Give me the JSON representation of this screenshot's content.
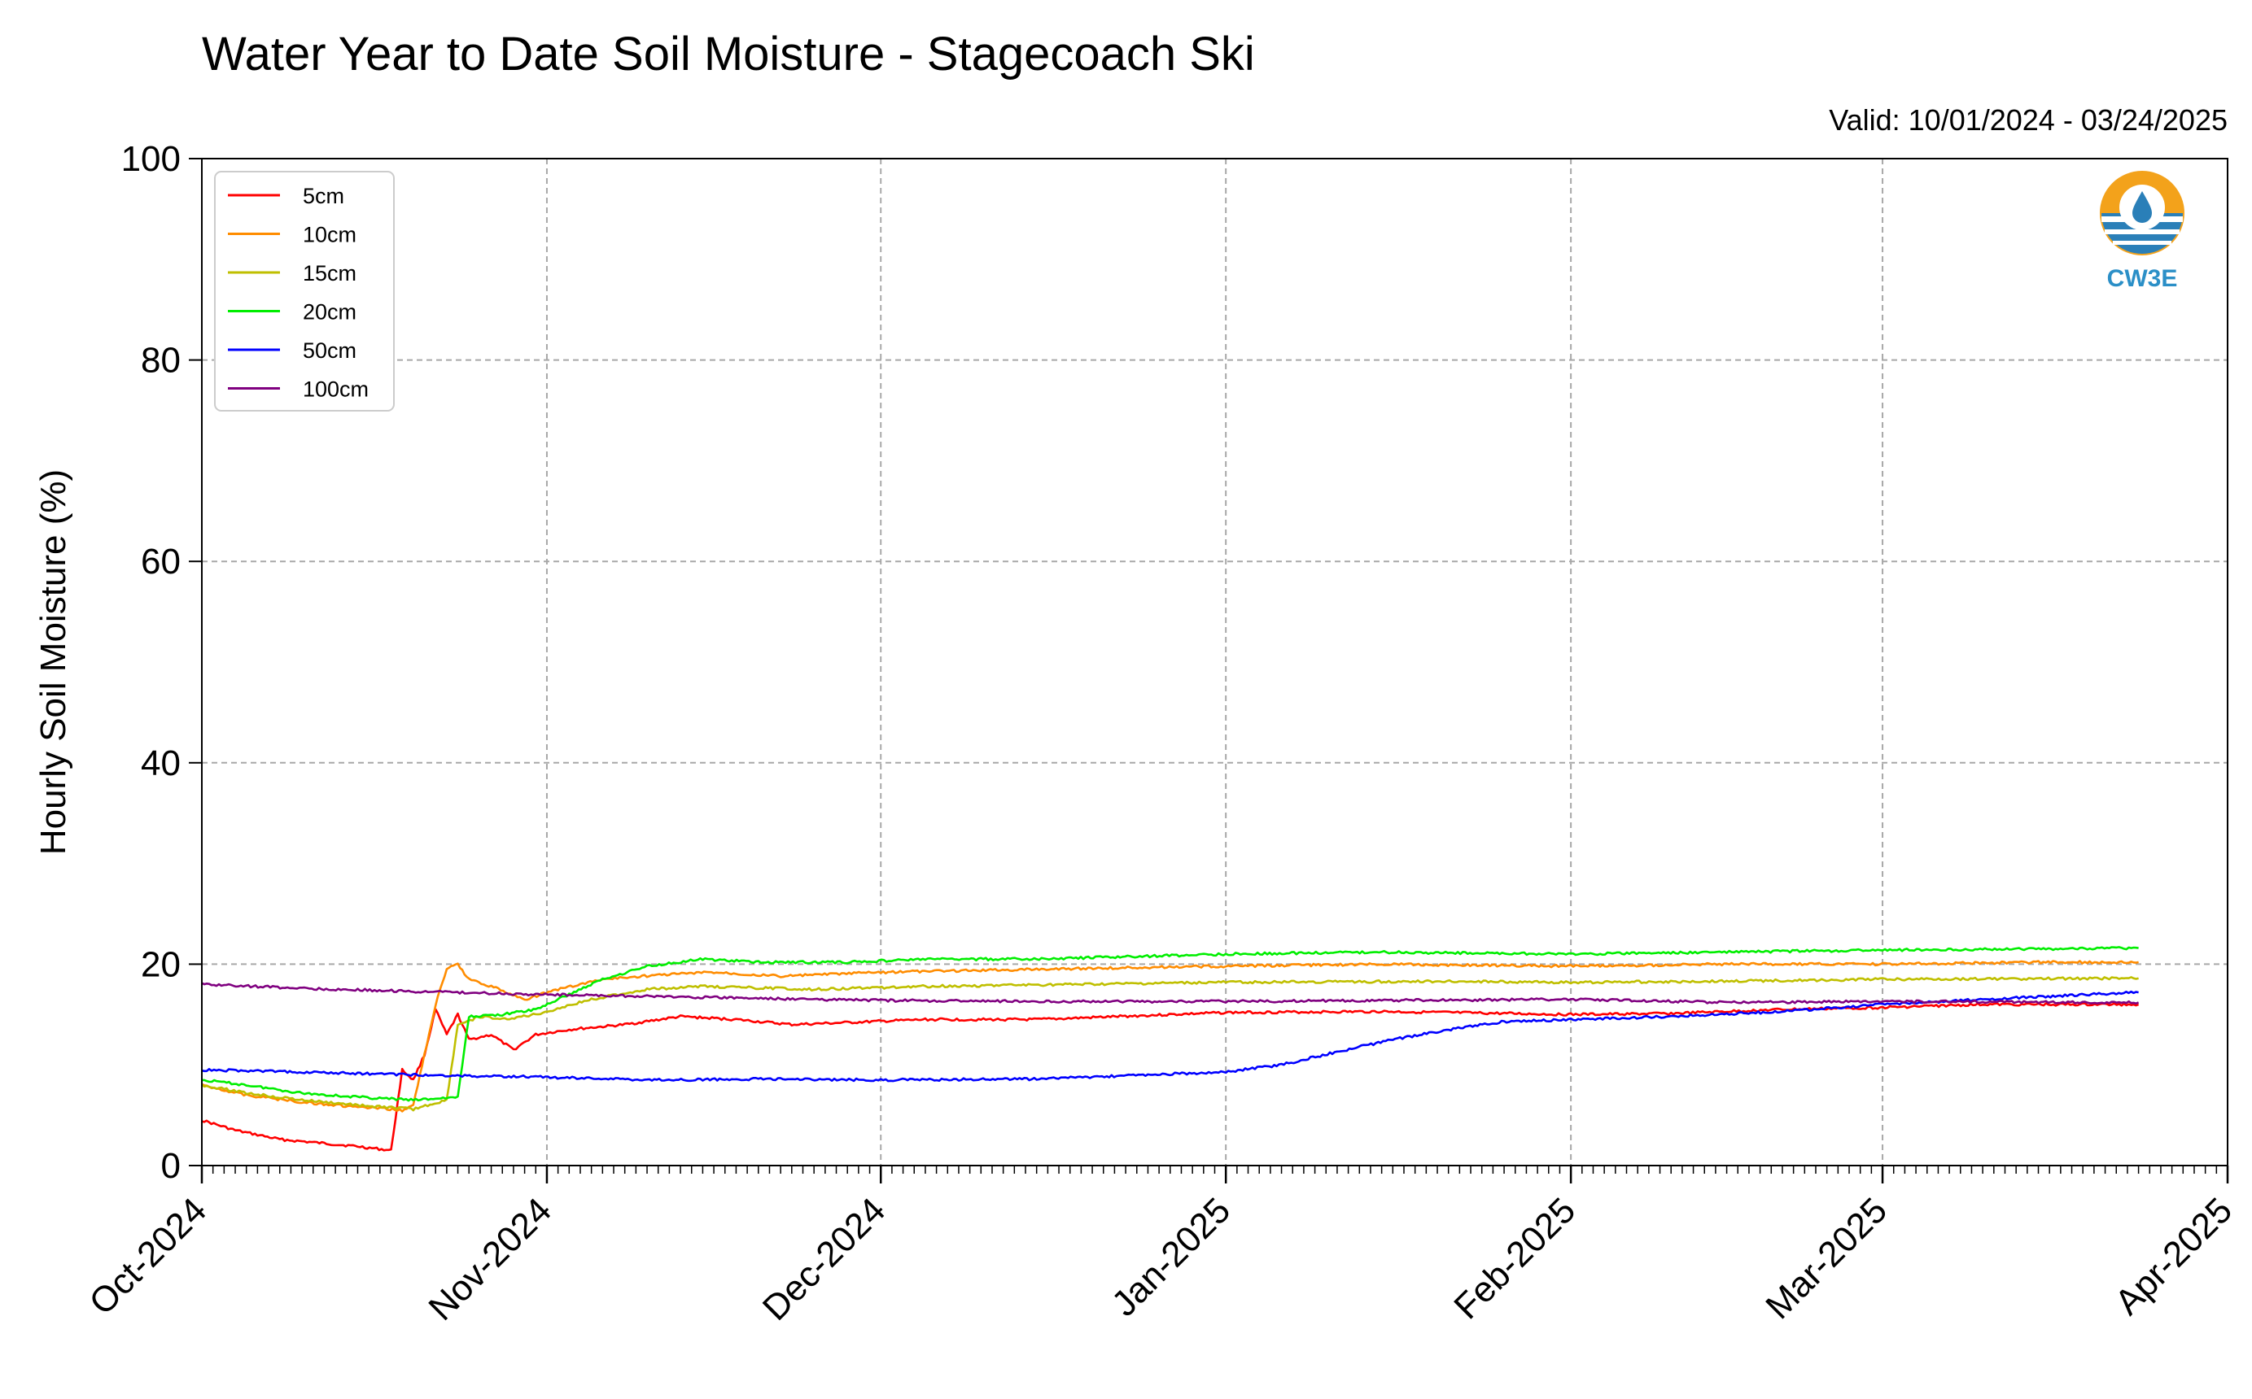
{
  "chart_data": {
    "type": "line",
    "title": "Water Year to Date Soil Moisture - Stagecoach Ski",
    "subtitle": "Valid: 10/01/2024 - 03/24/2025",
    "xlabel": "",
    "ylabel": "Hourly Soil Moisture (%)",
    "ylim": [
      0,
      100
    ],
    "yticks": [
      "0",
      "20",
      "40",
      "60",
      "80",
      "100"
    ],
    "xlim": [
      "2024-10-01",
      "2025-04-01"
    ],
    "xticks": [
      {
        "date": "2024-10-01",
        "label": "Oct-2024"
      },
      {
        "date": "2024-11-01",
        "label": "Nov-2024"
      },
      {
        "date": "2024-12-01",
        "label": "Dec-2024"
      },
      {
        "date": "2025-01-01",
        "label": "Jan-2025"
      },
      {
        "date": "2025-02-01",
        "label": "Feb-2025"
      },
      {
        "date": "2025-03-01",
        "label": "Mar-2025"
      },
      {
        "date": "2025-04-01",
        "label": "Apr-2025"
      }
    ],
    "grid": true,
    "legend_position": "top-left",
    "logo_text": "CW3E",
    "series": [
      {
        "name": "5cm",
        "color": "#ff0000",
        "points": [
          [
            "2024-10-01",
            4.5
          ],
          [
            "2024-10-04",
            3.5
          ],
          [
            "2024-10-08",
            2.6
          ],
          [
            "2024-10-12",
            2.2
          ],
          [
            "2024-10-15",
            1.9
          ],
          [
            "2024-10-18",
            1.5
          ],
          [
            "2024-10-19",
            9.5
          ],
          [
            "2024-10-20",
            8.5
          ],
          [
            "2024-10-21",
            11.0
          ],
          [
            "2024-10-22",
            15.5
          ],
          [
            "2024-10-23",
            13.0
          ],
          [
            "2024-10-24",
            15.0
          ],
          [
            "2024-10-25",
            12.5
          ],
          [
            "2024-10-27",
            13.0
          ],
          [
            "2024-10-29",
            11.5
          ],
          [
            "2024-10-31",
            13.0
          ],
          [
            "2024-11-03",
            13.5
          ],
          [
            "2024-11-08",
            14.0
          ],
          [
            "2024-11-13",
            14.8
          ],
          [
            "2024-11-18",
            14.5
          ],
          [
            "2024-11-23",
            14.0
          ],
          [
            "2024-11-28",
            14.2
          ],
          [
            "2024-12-05",
            14.5
          ],
          [
            "2024-12-15",
            14.5
          ],
          [
            "2025-01-01",
            15.2
          ],
          [
            "2025-01-15",
            15.3
          ],
          [
            "2025-02-01",
            15.0
          ],
          [
            "2025-02-10",
            15.1
          ],
          [
            "2025-02-20",
            15.5
          ],
          [
            "2025-03-01",
            15.7
          ],
          [
            "2025-03-10",
            16.0
          ],
          [
            "2025-03-24",
            16.0
          ]
        ]
      },
      {
        "name": "10cm",
        "color": "#ff8c00",
        "points": [
          [
            "2024-10-01",
            8.0
          ],
          [
            "2024-10-05",
            7.0
          ],
          [
            "2024-10-10",
            6.3
          ],
          [
            "2024-10-15",
            5.8
          ],
          [
            "2024-10-19",
            5.5
          ],
          [
            "2024-10-20",
            6.0
          ],
          [
            "2024-10-21",
            11.0
          ],
          [
            "2024-10-22",
            16.0
          ],
          [
            "2024-10-23",
            19.5
          ],
          [
            "2024-10-24",
            20.0
          ],
          [
            "2024-10-25",
            18.5
          ],
          [
            "2024-10-27",
            17.8
          ],
          [
            "2024-10-30",
            16.5
          ],
          [
            "2024-11-02",
            17.5
          ],
          [
            "2024-11-06",
            18.5
          ],
          [
            "2024-11-12",
            19.0
          ],
          [
            "2024-11-16",
            19.2
          ],
          [
            "2024-11-22",
            18.8
          ],
          [
            "2024-12-01",
            19.2
          ],
          [
            "2024-12-15",
            19.5
          ],
          [
            "2025-01-01",
            19.8
          ],
          [
            "2025-01-15",
            20.0
          ],
          [
            "2025-02-01",
            19.8
          ],
          [
            "2025-02-15",
            20.0
          ],
          [
            "2025-03-01",
            20.0
          ],
          [
            "2025-03-15",
            20.2
          ],
          [
            "2025-03-24",
            20.2
          ]
        ]
      },
      {
        "name": "15cm",
        "color": "#bfbf00",
        "points": [
          [
            "2024-10-01",
            8.0
          ],
          [
            "2024-10-05",
            7.2
          ],
          [
            "2024-10-10",
            6.5
          ],
          [
            "2024-10-15",
            6.0
          ],
          [
            "2024-10-20",
            5.6
          ],
          [
            "2024-10-23",
            6.5
          ],
          [
            "2024-10-24",
            14.0
          ],
          [
            "2024-10-26",
            14.8
          ],
          [
            "2024-10-28",
            14.5
          ],
          [
            "2024-10-31",
            15.0
          ],
          [
            "2024-11-05",
            16.5
          ],
          [
            "2024-11-10",
            17.5
          ],
          [
            "2024-11-15",
            17.8
          ],
          [
            "2024-11-25",
            17.5
          ],
          [
            "2024-12-05",
            17.8
          ],
          [
            "2024-12-20",
            18.0
          ],
          [
            "2025-01-01",
            18.2
          ],
          [
            "2025-01-20",
            18.3
          ],
          [
            "2025-02-01",
            18.2
          ],
          [
            "2025-02-15",
            18.3
          ],
          [
            "2025-03-01",
            18.5
          ],
          [
            "2025-03-24",
            18.6
          ]
        ]
      },
      {
        "name": "20cm",
        "color": "#00ee00",
        "points": [
          [
            "2024-10-01",
            8.5
          ],
          [
            "2024-10-05",
            8.0
          ],
          [
            "2024-10-10",
            7.2
          ],
          [
            "2024-10-15",
            6.8
          ],
          [
            "2024-10-20",
            6.5
          ],
          [
            "2024-10-24",
            6.8
          ],
          [
            "2024-10-25",
            14.8
          ],
          [
            "2024-10-28",
            15.0
          ],
          [
            "2024-10-31",
            15.5
          ],
          [
            "2024-11-03",
            17.0
          ],
          [
            "2024-11-06",
            18.5
          ],
          [
            "2024-11-10",
            19.8
          ],
          [
            "2024-11-15",
            20.5
          ],
          [
            "2024-11-20",
            20.2
          ],
          [
            "2024-11-28",
            20.2
          ],
          [
            "2024-12-05",
            20.5
          ],
          [
            "2024-12-15",
            20.5
          ],
          [
            "2025-01-01",
            21.0
          ],
          [
            "2025-01-15",
            21.2
          ],
          [
            "2025-02-01",
            21.0
          ],
          [
            "2025-02-15",
            21.2
          ],
          [
            "2025-03-01",
            21.4
          ],
          [
            "2025-03-24",
            21.6
          ]
        ]
      },
      {
        "name": "50cm",
        "color": "#0000ff",
        "points": [
          [
            "2024-10-01",
            9.5
          ],
          [
            "2024-10-10",
            9.3
          ],
          [
            "2024-10-20",
            9.0
          ],
          [
            "2024-10-31",
            8.8
          ],
          [
            "2024-11-10",
            8.5
          ],
          [
            "2024-11-20",
            8.6
          ],
          [
            "2024-12-01",
            8.5
          ],
          [
            "2024-12-15",
            8.6
          ],
          [
            "2024-12-25",
            9.0
          ],
          [
            "2025-01-01",
            9.3
          ],
          [
            "2025-01-06",
            10.0
          ],
          [
            "2025-01-11",
            11.3
          ],
          [
            "2025-01-16",
            12.5
          ],
          [
            "2025-01-21",
            13.5
          ],
          [
            "2025-01-26",
            14.3
          ],
          [
            "2025-02-01",
            14.5
          ],
          [
            "2025-02-10",
            14.8
          ],
          [
            "2025-02-20",
            15.3
          ],
          [
            "2025-03-01",
            16.0
          ],
          [
            "2025-03-10",
            16.5
          ],
          [
            "2025-03-20",
            17.0
          ],
          [
            "2025-03-24",
            17.2
          ]
        ]
      },
      {
        "name": "100cm",
        "color": "#800080",
        "points": [
          [
            "2024-10-01",
            18.0
          ],
          [
            "2024-10-10",
            17.6
          ],
          [
            "2024-10-20",
            17.3
          ],
          [
            "2024-10-31",
            17.0
          ],
          [
            "2024-11-10",
            16.8
          ],
          [
            "2024-11-20",
            16.6
          ],
          [
            "2024-12-01",
            16.4
          ],
          [
            "2024-12-15",
            16.3
          ],
          [
            "2025-01-01",
            16.3
          ],
          [
            "2025-01-15",
            16.4
          ],
          [
            "2025-02-01",
            16.5
          ],
          [
            "2025-02-15",
            16.2
          ],
          [
            "2025-03-01",
            16.3
          ],
          [
            "2025-03-24",
            16.2
          ]
        ]
      }
    ]
  }
}
